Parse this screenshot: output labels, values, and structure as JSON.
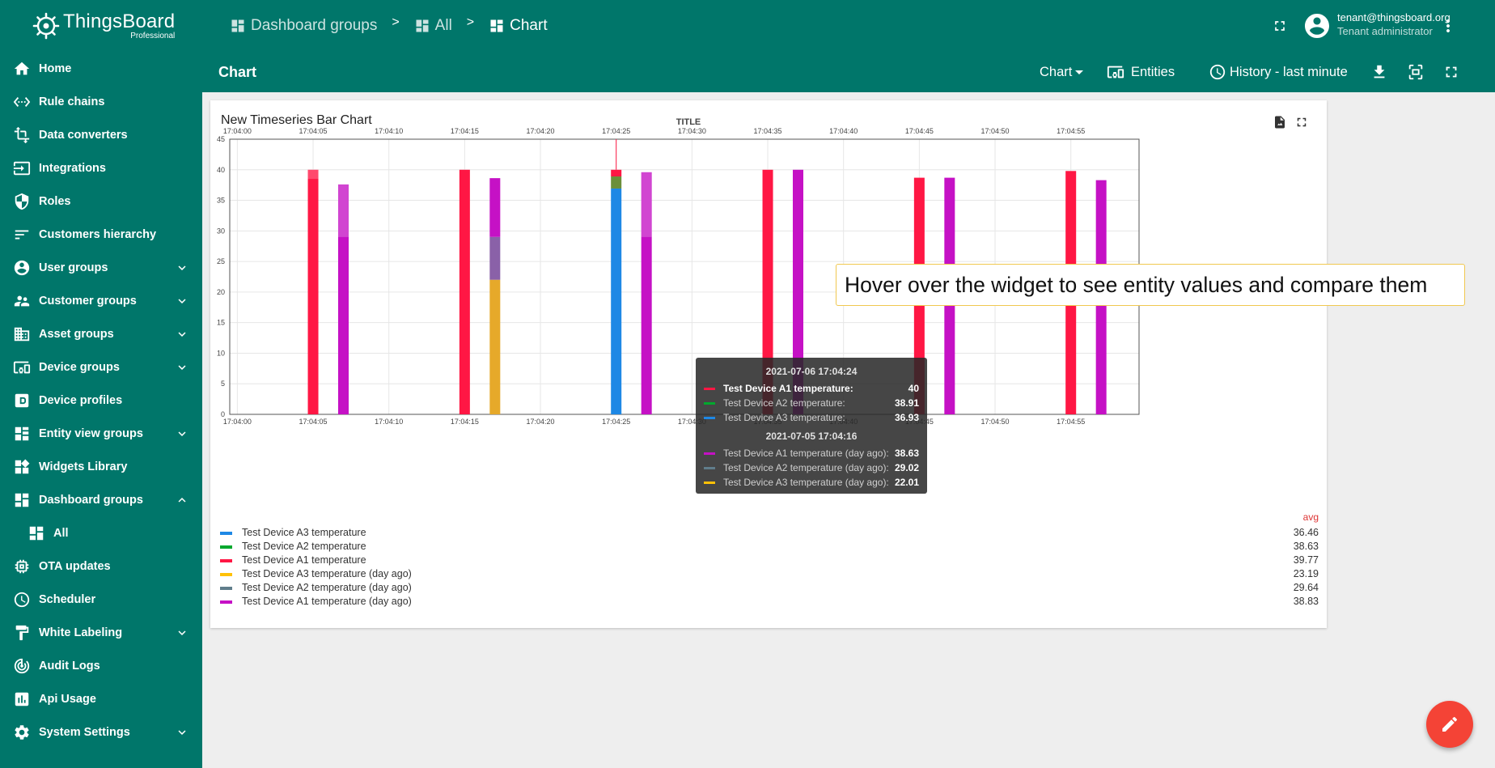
{
  "app": {
    "brand": "ThingsBoard",
    "edition": "Professional"
  },
  "sidebar": {
    "items": [
      {
        "label": "Home",
        "icon": "home-icon",
        "expandable": false
      },
      {
        "label": "Rule chains",
        "icon": "settings-ethernet-icon",
        "expandable": false
      },
      {
        "label": "Data converters",
        "icon": "transform-icon",
        "expandable": false
      },
      {
        "label": "Integrations",
        "icon": "input-icon",
        "expandable": false
      },
      {
        "label": "Roles",
        "icon": "shield-icon",
        "expandable": false
      },
      {
        "label": "Customers hierarchy",
        "icon": "sort-icon",
        "expandable": false
      },
      {
        "label": "User groups",
        "icon": "account-circle-icon",
        "expandable": true
      },
      {
        "label": "Customer groups",
        "icon": "supervisor-account-icon",
        "expandable": true
      },
      {
        "label": "Asset groups",
        "icon": "domain-icon",
        "expandable": true
      },
      {
        "label": "Device groups",
        "icon": "devices-other-icon",
        "expandable": true
      },
      {
        "label": "Device profiles",
        "icon": "device-profile-icon",
        "expandable": false
      },
      {
        "label": "Entity view groups",
        "icon": "view-quilt-icon",
        "expandable": true
      },
      {
        "label": "Widgets Library",
        "icon": "widgets-icon",
        "expandable": false
      },
      {
        "label": "Dashboard groups",
        "icon": "dashboard-icon",
        "expandable": true,
        "expanded": true
      },
      {
        "label": "All",
        "icon": "dashboard-icon",
        "expandable": false,
        "sub": true
      },
      {
        "label": "OTA updates",
        "icon": "memory-icon",
        "expandable": false
      },
      {
        "label": "Scheduler",
        "icon": "schedule-icon",
        "expandable": false
      },
      {
        "label": "White Labeling",
        "icon": "format-paint-icon",
        "expandable": true
      },
      {
        "label": "Audit Logs",
        "icon": "track-changes-icon",
        "expandable": false
      },
      {
        "label": "Api Usage",
        "icon": "insert-chart-icon",
        "expandable": false
      },
      {
        "label": "System Settings",
        "icon": "settings-icon",
        "expandable": true
      }
    ]
  },
  "breadcrumb": [
    {
      "label": "Dashboard groups"
    },
    {
      "label": "All"
    },
    {
      "label": "Chart"
    }
  ],
  "breadcrumb_separator": ">",
  "user": {
    "email": "tenant@thingsboard.org",
    "role": "Tenant administrator"
  },
  "dashboard": {
    "title": "Chart",
    "state_label": "Chart",
    "entities_label": "Entities",
    "timewindow_label": "History - last minute"
  },
  "widget": {
    "title": "New Timeseries Bar Chart",
    "avg_header": "avg",
    "legend": [
      {
        "label": "Test Device A3 temperature",
        "avg": "36.46",
        "color": "#1e88e5"
      },
      {
        "label": "Test Device A2 temperature",
        "avg": "38.63",
        "color": "#00a82d"
      },
      {
        "label": "Test Device A1 temperature",
        "avg": "39.77",
        "color": "#ff1744"
      },
      {
        "label": "Test Device A3 temperature (day ago)",
        "avg": "23.19",
        "color": "#ffc107"
      },
      {
        "label": "Test Device A2 temperature (day ago)",
        "avg": "29.64",
        "color": "#607d8b"
      },
      {
        "label": "Test Device A1 temperature (day ago)",
        "avg": "38.83",
        "color": "#c511c5"
      }
    ]
  },
  "chart_data": {
    "type": "bar",
    "title": "TITLE",
    "x_ticks": [
      "17:04:00",
      "17:04:05",
      "17:04:10",
      "17:04:15",
      "17:04:20",
      "17:04:25",
      "17:04:30",
      "17:04:35",
      "17:04:40",
      "17:04:45",
      "17:04:50",
      "17:04:55"
    ],
    "x_range_seconds": [
      -0.5,
      59.5
    ],
    "y_ticks": [
      0,
      5,
      10,
      15,
      20,
      25,
      30,
      35,
      40,
      45
    ],
    "ylim": [
      0,
      45
    ],
    "grid": true,
    "legend_position": "bottom",
    "bars": [
      {
        "t_seconds": 5,
        "series": "Test Device A1 temperature",
        "value": 40,
        "color": "#ff1744",
        "hatch": 38.5
      },
      {
        "t_seconds": 7,
        "series": "Test Device A1 temperature (day ago)",
        "value": 37.6,
        "color": "#c511c5",
        "hatch": 29
      },
      {
        "t_seconds": 15,
        "series": "Test Device A1 temperature",
        "value": 40,
        "color": "#ff1744"
      },
      {
        "t_seconds": 17,
        "stack": [
          {
            "series": "Test Device A3 temperature (day ago)",
            "value": 22.01,
            "color": "#e6a92a"
          },
          {
            "series": "Test Device A2 temperature (day ago)",
            "value": 29.02,
            "color": "#8a61a8"
          },
          {
            "series": "Test Device A1 temperature (day ago)",
            "value": 38.63,
            "color": "#c511c5"
          }
        ]
      },
      {
        "t_seconds": 25,
        "stack": [
          {
            "series": "Test Device A3 temperature",
            "value": 36.93,
            "color": "#1e88e5"
          },
          {
            "series": "Test Device A2 temperature",
            "value": 38.91,
            "color": "#6b8f3a"
          },
          {
            "series": "Test Device A1 temperature",
            "value": 40,
            "color": "#ff1744"
          }
        ]
      },
      {
        "t_seconds": 27,
        "series": "Test Device A1 temperature (day ago)",
        "value": 39.6,
        "color": "#c511c5",
        "hatch": 29
      },
      {
        "t_seconds": 35,
        "series": "Test Device A1 temperature",
        "value": 40,
        "color": "#ff1744"
      },
      {
        "t_seconds": 37,
        "series": "Test Device A1 temperature (day ago)",
        "value": 40,
        "color": "#c511c5"
      },
      {
        "t_seconds": 45,
        "series": "Test Device A1 temperature",
        "value": 38.7,
        "color": "#ff1744"
      },
      {
        "t_seconds": 47,
        "series": "Test Device A1 temperature (day ago)",
        "value": 38.7,
        "color": "#c511c5"
      },
      {
        "t_seconds": 55,
        "series": "Test Device A1 temperature",
        "value": 39.8,
        "color": "#ff1744"
      },
      {
        "t_seconds": 57,
        "series": "Test Device A1 temperature (day ago)",
        "value": 38.3,
        "color": "#c511c5"
      }
    ],
    "hover_marker_t_seconds": 25
  },
  "tooltip": {
    "current_time": "2021-07-06 17:04:24",
    "current_rows": [
      {
        "label": "Test Device A1 temperature:",
        "value": "40",
        "color": "#ff1744",
        "highlight": true
      },
      {
        "label": "Test Device A2 temperature:",
        "value": "38.91",
        "color": "#00a82d",
        "highlight": false
      },
      {
        "label": "Test Device A3 temperature:",
        "value": "36.93",
        "color": "#1e88e5",
        "highlight": false
      }
    ],
    "past_time": "2021-07-05 17:04:16",
    "past_rows": [
      {
        "label": "Test Device A1 temperature (day ago):",
        "value": "38.63",
        "color": "#c511c5"
      },
      {
        "label": "Test Device A2 temperature (day ago):",
        "value": "29.02",
        "color": "#607d8b"
      },
      {
        "label": "Test Device A3 temperature (day ago):",
        "value": "22.01",
        "color": "#ffc107"
      }
    ]
  },
  "hint": {
    "text": "Hover over the widget to see entity values and compare them"
  },
  "colors": {
    "primary": "#00766a",
    "fab": "#f44336"
  }
}
